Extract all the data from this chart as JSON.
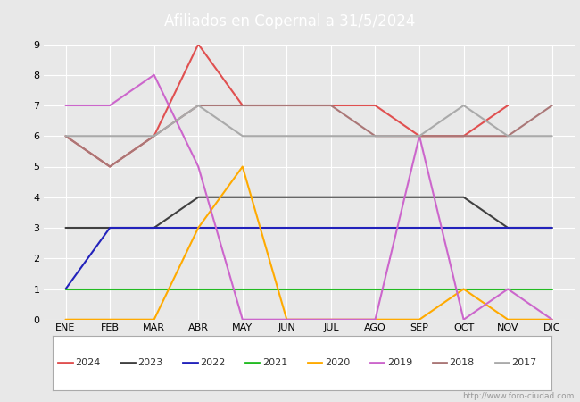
{
  "title": "Afiliados en Copernal a 31/5/2024",
  "header_bg": "#5b9bd5",
  "months": [
    "ENE",
    "FEB",
    "MAR",
    "ABR",
    "MAY",
    "JUN",
    "JUL",
    "AGO",
    "SEP",
    "OCT",
    "NOV",
    "DIC"
  ],
  "ylim": [
    0.0,
    9.0
  ],
  "yticks": [
    0.0,
    1.0,
    2.0,
    3.0,
    4.0,
    5.0,
    6.0,
    7.0,
    8.0,
    9.0
  ],
  "series": {
    "2024": {
      "color": "#e05050",
      "data": [
        6,
        5,
        6,
        9,
        7,
        7,
        7,
        7,
        6,
        6,
        7,
        null
      ]
    },
    "2023": {
      "color": "#404040",
      "data": [
        3,
        3,
        3,
        4,
        4,
        4,
        4,
        4,
        4,
        4,
        3,
        3
      ]
    },
    "2022": {
      "color": "#2222bb",
      "data": [
        1,
        3,
        3,
        3,
        3,
        3,
        3,
        3,
        3,
        3,
        3,
        3
      ]
    },
    "2021": {
      "color": "#22bb22",
      "data": [
        1,
        1,
        1,
        1,
        1,
        1,
        1,
        1,
        1,
        1,
        1,
        1
      ]
    },
    "2020": {
      "color": "#ffaa00",
      "data": [
        0,
        0,
        0,
        3,
        5,
        0,
        0,
        0,
        0,
        1,
        0,
        0
      ]
    },
    "2019": {
      "color": "#cc66cc",
      "data": [
        7,
        7,
        8,
        5,
        0,
        0,
        0,
        0,
        6,
        0,
        1,
        0
      ]
    },
    "2018": {
      "color": "#aa7777",
      "data": [
        6,
        5,
        6,
        7,
        7,
        7,
        7,
        6,
        6,
        6,
        6,
        7
      ]
    },
    "2017": {
      "color": "#aaaaaa",
      "data": [
        6,
        6,
        6,
        7,
        6,
        6,
        6,
        6,
        6,
        7,
        6,
        6
      ]
    }
  },
  "plot_bg": "#e8e8e8",
  "grid_color": "#ffffff",
  "watermark": "http://www.foro-ciudad.com",
  "legend_years": [
    "2024",
    "2023",
    "2022",
    "2021",
    "2020",
    "2019",
    "2018",
    "2017"
  ]
}
